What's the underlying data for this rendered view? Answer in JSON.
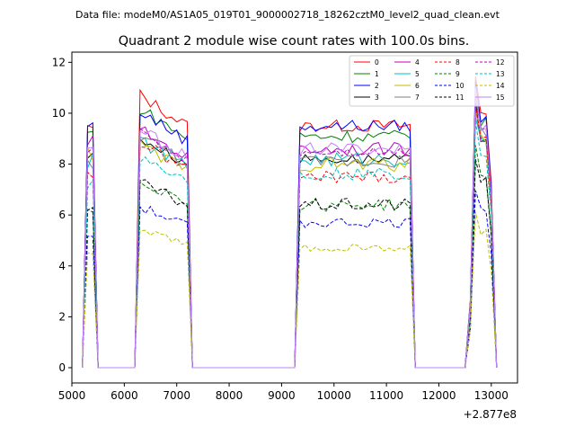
{
  "chart_data": {
    "type": "line",
    "header": "Data file: modeM0/AS1A05_019T01_9000002718_18262cztM0_level2_quad_clean.evt",
    "title": "Quadrant 2 module wise count rates with 100.0s bins.",
    "xlabel": "",
    "ylabel": "",
    "x_offset_label": "+2.877e8",
    "xlim": [
      5000,
      13500
    ],
    "ylim": [
      -0.6,
      12.4
    ],
    "x_ticks": [
      5000,
      6000,
      7000,
      8000,
      9000,
      10000,
      11000,
      12000,
      13000
    ],
    "x_tick_labels": [
      "5000",
      "6000",
      "7000",
      "8000",
      "9000",
      "10000",
      "11000",
      "12000",
      "13000"
    ],
    "y_ticks": [
      0,
      2,
      4,
      6,
      8,
      10,
      12
    ],
    "y_tick_labels": [
      "0",
      "2",
      "4",
      "6",
      "8",
      "10",
      "12"
    ],
    "legend_position": "top-right",
    "segments": [
      {
        "start": 5300,
        "points": 2,
        "shape": "plateau"
      },
      {
        "start": 6300,
        "points": 10,
        "shape": "decay"
      },
      {
        "start": 9350,
        "points": 22,
        "shape": "flat"
      },
      {
        "start": 12600,
        "points": 5,
        "shape": "peak"
      }
    ],
    "series": [
      {
        "name": "0",
        "color": "#ff0000",
        "dash": false,
        "level": 9.4,
        "seg_levels": [
          9.4,
          10.2,
          9.5,
          10.6
        ],
        "noise": 0.25
      },
      {
        "name": "1",
        "color": "#008000",
        "dash": false,
        "level": 9.2,
        "seg_levels": [
          9.2,
          9.7,
          9.1,
          10.1
        ],
        "noise": 0.25
      },
      {
        "name": "2",
        "color": "#0000ff",
        "dash": false,
        "level": 9.5,
        "seg_levels": [
          9.5,
          9.6,
          9.5,
          10.3
        ],
        "noise": 0.25
      },
      {
        "name": "3",
        "color": "#000000",
        "dash": false,
        "level": 8.3,
        "seg_levels": [
          8.3,
          8.6,
          8.2,
          9.5
        ],
        "noise": 0.2
      },
      {
        "name": "4",
        "color": "#bf00bf",
        "dash": false,
        "level": 8.9,
        "seg_levels": [
          8.9,
          8.9,
          8.6,
          9.6
        ],
        "noise": 0.25
      },
      {
        "name": "5",
        "color": "#00bfbf",
        "dash": false,
        "level": 8.1,
        "seg_levels": [
          8.1,
          8.5,
          8.2,
          9.2
        ],
        "noise": 0.3
      },
      {
        "name": "6",
        "color": "#bfbf00",
        "dash": false,
        "level": 8.4,
        "seg_levels": [
          8.4,
          8.3,
          8.0,
          9.4
        ],
        "noise": 0.3
      },
      {
        "name": "7",
        "color": "#808080",
        "dash": false,
        "level": 8.0,
        "seg_levels": [
          8.0,
          8.7,
          8.1,
          9.8
        ],
        "noise": 0.25
      },
      {
        "name": "8",
        "color": "#ff0000",
        "dash": true,
        "level": 7.6,
        "seg_levels": [
          7.6,
          8.4,
          7.5,
          9.4
        ],
        "noise": 0.25
      },
      {
        "name": "9",
        "color": "#008000",
        "dash": true,
        "level": 6.2,
        "seg_levels": [
          6.2,
          7.0,
          6.4,
          7.9
        ],
        "noise": 0.25
      },
      {
        "name": "10",
        "color": "#0000ff",
        "dash": true,
        "level": 5.2,
        "seg_levels": [
          5.2,
          6.0,
          5.7,
          6.6
        ],
        "noise": 0.2
      },
      {
        "name": "11",
        "color": "#000000",
        "dash": true,
        "level": 6.3,
        "seg_levels": [
          6.3,
          6.9,
          6.4,
          7.7
        ],
        "noise": 0.25
      },
      {
        "name": "12",
        "color": "#bf00bf",
        "dash": true,
        "level": 8.6,
        "seg_levels": [
          8.6,
          8.8,
          8.5,
          9.9
        ],
        "noise": 0.2
      },
      {
        "name": "13",
        "color": "#00bfbf",
        "dash": true,
        "level": 7.3,
        "seg_levels": [
          7.3,
          7.9,
          7.6,
          8.9
        ],
        "noise": 0.25
      },
      {
        "name": "14",
        "color": "#bfbf00",
        "dash": true,
        "level": 4.4,
        "seg_levels": [
          4.4,
          5.2,
          4.7,
          5.6
        ],
        "noise": 0.15
      },
      {
        "name": "15",
        "color": "#bf80ff",
        "dash": false,
        "level": 8.5,
        "seg_levels": [
          8.5,
          8.9,
          8.6,
          10.0
        ],
        "noise": 0.25
      }
    ]
  }
}
